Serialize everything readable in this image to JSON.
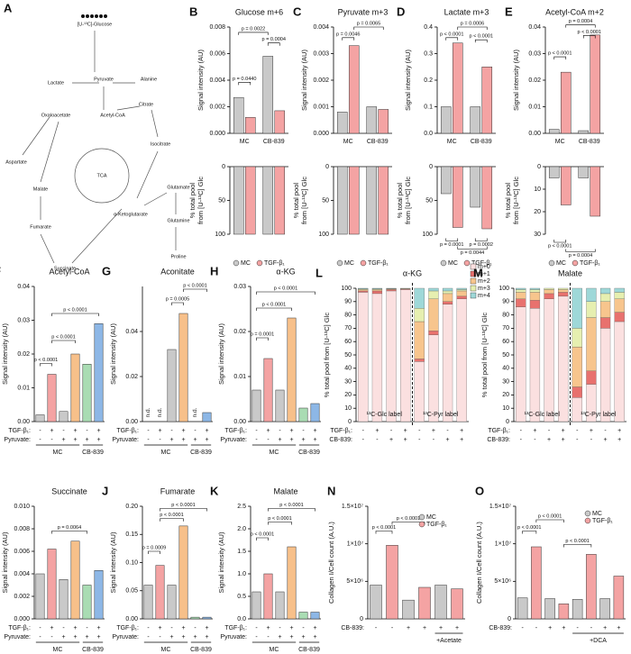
{
  "diagram": {
    "label": "A",
    "nodes": [
      "[U-¹³C]-Glucose",
      "Lactate",
      "Pyruvate",
      "Alanine",
      "Acetyl-CoA",
      "Citrate",
      "Oxaloacetate",
      "Aspartate",
      "Malate",
      "Isocitrate",
      "TCA",
      "Fumarate",
      "α-Ketoglutarate",
      "Glutamate",
      "Succinate",
      "Glutamine",
      "Proline"
    ]
  },
  "chart_data": [
    {
      "type": "bar",
      "label": "B",
      "title": "Glucose m+6",
      "ylabel": "Signal intensity (AU)",
      "ylim": [
        0,
        0.008
      ],
      "yticks": [
        {
          "value": 0,
          "label": "0.000"
        },
        0.002,
        0.004,
        0.006,
        0.008
      ],
      "categories": [
        "MC",
        "CB-839"
      ],
      "series": [
        {
          "name": "MC",
          "color": "#c9c9c9",
          "values": [
            0.0027,
            0.0058
          ]
        },
        {
          "name": "TGF-β₁",
          "color": "#f4a3a3",
          "values": [
            0.0012,
            0.0017
          ]
        }
      ],
      "annotations": [
        "p = 0.0022",
        "p = 0.0004",
        "p = 0.0440"
      ]
    },
    {
      "type": "bar",
      "inverted": true,
      "ylabel": [
        "% total pool",
        "from [U-¹³C] Glc"
      ],
      "ylim": [
        0,
        100
      ],
      "yticks": [
        0,
        50,
        100
      ],
      "series": [
        {
          "color": "#c9c9c9",
          "values": [
            100,
            100
          ]
        },
        {
          "color": "#f4a3a3",
          "values": [
            100,
            100
          ]
        }
      ]
    },
    {
      "type": "bar",
      "label": "C",
      "title": "Pyruvate m+3",
      "ylabel": "Signal intensity (AU)",
      "ylim": [
        0,
        0.004
      ],
      "yticks": [
        {
          "value": 0,
          "label": "0.000"
        },
        0.001,
        0.002,
        0.003,
        0.004
      ],
      "categories": [
        "MC",
        "CB-839"
      ],
      "series": [
        {
          "name": "MC",
          "color": "#c9c9c9",
          "values": [
            0.0008,
            0.001
          ]
        },
        {
          "name": "TGF-β₁",
          "color": "#f4a3a3",
          "values": [
            0.0033,
            0.0009
          ]
        }
      ],
      "annotations": [
        "p = 0.0046",
        "p = 0.0065"
      ]
    },
    {
      "type": "bar",
      "inverted": true,
      "ylabel": [
        "% total pool",
        "from [U-¹³C] Glc"
      ],
      "ylim": [
        0,
        100
      ],
      "yticks": [
        0,
        50,
        100
      ],
      "series": [
        {
          "color": "#c9c9c9",
          "values": [
            100,
            100
          ]
        },
        {
          "color": "#f4a3a3",
          "values": [
            100,
            100
          ]
        }
      ]
    },
    {
      "type": "bar",
      "label": "D",
      "title": "Lactate m+3",
      "ylabel": "Signal intensity (AU)",
      "ylim": [
        0,
        0.4
      ],
      "yticks": [
        {
          "value": 0,
          "label": "0.0"
        },
        0.1,
        0.2,
        0.3,
        0.4
      ],
      "categories": [
        "MC",
        "CB-839"
      ],
      "series": [
        {
          "name": "MC",
          "color": "#c9c9c9",
          "values": [
            0.1,
            0.1
          ]
        },
        {
          "name": "TGF-β₁",
          "color": "#f4a3a3",
          "values": [
            0.34,
            0.25
          ]
        }
      ],
      "annotations": [
        "p = 0.0006",
        "p < 0.0001",
        "p < 0.0001"
      ]
    },
    {
      "type": "bar",
      "inverted": true,
      "ylabel": [
        "% total pool",
        "from [U-¹³C] Glc"
      ],
      "ylim": [
        0,
        100
      ],
      "yticks": [
        0,
        50,
        100
      ],
      "series": [
        {
          "color": "#c9c9c9",
          "values": [
            40,
            60
          ]
        },
        {
          "color": "#f4a3a3",
          "values": [
            90,
            92
          ]
        }
      ],
      "annotations": [
        "p = 0.0001",
        "p = 0.0044",
        "p = 0.0002"
      ]
    },
    {
      "type": "bar",
      "label": "E",
      "title": "Acetyl-CoA m+2",
      "ylabel": "Signal intensity (AU)",
      "ylim": [
        0,
        0.04
      ],
      "yticks": [
        {
          "value": 0,
          "label": "0.00"
        },
        0.01,
        0.02,
        0.03,
        0.04
      ],
      "categories": [
        "MC",
        "CB-839"
      ],
      "series": [
        {
          "name": "MC",
          "color": "#c9c9c9",
          "values": [
            0.0015,
            0.001
          ]
        },
        {
          "name": "TGF-β₁",
          "color": "#f4a3a3",
          "values": [
            0.023,
            0.037
          ]
        }
      ],
      "annotations": [
        "p = 0.0004",
        "p < 0.0001",
        "p < 0.0001"
      ]
    },
    {
      "type": "bar",
      "inverted": true,
      "ylabel": [
        "% total pool",
        "from [U-¹³C] Glc"
      ],
      "ylim": [
        0,
        30
      ],
      "yticks": [
        0,
        10,
        20,
        30
      ],
      "series": [
        {
          "color": "#c9c9c9",
          "values": [
            5,
            5
          ]
        },
        {
          "color": "#f4a3a3",
          "values": [
            17,
            22
          ]
        }
      ],
      "annotations": [
        "p < 0.0001",
        "p = 0.0004"
      ]
    },
    {
      "type": "bar",
      "label": "F",
      "title": "Acetyl-CoA",
      "ylabel": "Signal intensity (AU)",
      "ylim": [
        0,
        0.04
      ],
      "yticks": [
        {
          "value": 0,
          "label": "0.00"
        },
        0.01,
        0.02,
        0.03,
        0.04
      ],
      "values": [
        0.002,
        0.014,
        0.003,
        0.02,
        0.017,
        0.029
      ],
      "colors": [
        "#c9c9c9",
        "#f4a3a3",
        "#c9c9c9",
        "#f7c08a",
        "#a9dcb3",
        "#8db7e6"
      ],
      "conditions": [
        {
          "name": "TGF-β₁:",
          "values": [
            "-",
            "+",
            "-",
            "+",
            "-",
            "+"
          ]
        },
        {
          "name": "Pyruvate:",
          "values": [
            "-",
            "-",
            "+",
            "+",
            "+",
            "+"
          ]
        }
      ],
      "groups": [
        "MC",
        "CB-839"
      ],
      "annotations": [
        "p < 0.0001",
        "p < 0.0001",
        "p < 0.0001"
      ]
    },
    {
      "type": "bar",
      "label": "G",
      "title": "Aconitate",
      "ylabel": "Signal intensity (AU)",
      "ylim": [
        0,
        0.06
      ],
      "yticks": [
        {
          "value": 0,
          "label": "0.00"
        },
        0.02,
        0.04
      ],
      "values": [
        null,
        null,
        0.032,
        0.048,
        null,
        0.004
      ],
      "value_labels": [
        "n.d.",
        "n.d.",
        null,
        null,
        "n.d.",
        null
      ],
      "colors": [
        "#c9c9c9",
        "#f4a3a3",
        "#c9c9c9",
        "#f7c08a",
        "#a9dcb3",
        "#8db7e6"
      ],
      "conditions": [
        {
          "name": "TGF-β₁:",
          "values": [
            "-",
            "+",
            "-",
            "+",
            "-",
            "+"
          ]
        },
        {
          "name": "Pyruvate:",
          "values": [
            "-",
            "-",
            "+",
            "+",
            "+",
            "+"
          ]
        }
      ],
      "groups": [
        "MC",
        "CB-839"
      ],
      "annotations": [
        "p = 0.0005",
        "p < 0.0001"
      ]
    },
    {
      "type": "bar",
      "label": "H",
      "title": "α-KG",
      "ylabel": "Signal intensity (AU)",
      "ylim": [
        0,
        0.03
      ],
      "yticks": [
        {
          "value": 0,
          "label": "0.00"
        },
        0.01,
        0.02,
        0.03
      ],
      "values": [
        0.007,
        0.014,
        0.007,
        0.023,
        0.003,
        0.004
      ],
      "colors": [
        "#c9c9c9",
        "#f4a3a3",
        "#c9c9c9",
        "#f7c08a",
        "#a9dcb3",
        "#8db7e6"
      ],
      "conditions": [
        {
          "name": "TGF-β₁:",
          "values": [
            "-",
            "+",
            "-",
            "+",
            "-",
            "+"
          ]
        },
        {
          "name": "Pyruvate:",
          "values": [
            "-",
            "-",
            "+",
            "+",
            "+",
            "+"
          ]
        }
      ],
      "groups": [
        "MC",
        "CB-839"
      ],
      "annotations": [
        "p < 0.0001",
        "p < 0.0001",
        "p = 0.0001"
      ]
    },
    {
      "type": "stacked",
      "label": "L",
      "title": "α-KG",
      "ylabel": "% total pool from [U-¹³C] Glc",
      "ylim": [
        0,
        100
      ],
      "yticks": [
        0,
        10,
        20,
        30,
        40,
        50,
        60,
        70,
        80,
        90,
        100
      ],
      "conditions": [
        {
          "name": "TGF-β₁:",
          "values": [
            "-",
            "+",
            "-",
            "+",
            "-",
            "+",
            "-",
            "+"
          ]
        },
        {
          "name": "CB-839:",
          "values": [
            "-",
            "-",
            "+",
            "+",
            "-",
            "-",
            "+",
            "+"
          ]
        }
      ],
      "groups": [
        "¹³C-Glc label",
        "¹³C-Pyr label"
      ],
      "series": [
        {
          "name": "m+0",
          "color": "#fbe0e0",
          "values": [
            97,
            96,
            98,
            99,
            45,
            65,
            88,
            92
          ]
        },
        {
          "name": "m+1",
          "color": "#e8716e",
          "values": [
            1,
            2,
            1,
            0.5,
            2,
            3,
            2,
            2
          ]
        },
        {
          "name": "m+2",
          "color": "#f7c58d",
          "values": [
            1,
            1,
            0.5,
            0.3,
            28,
            24,
            6,
            4
          ]
        },
        {
          "name": "m+3",
          "color": "#e6efb0",
          "values": [
            0.5,
            0.5,
            0.3,
            0.2,
            10,
            6,
            2,
            1
          ]
        },
        {
          "name": "m+4",
          "color": "#9ed8d8",
          "values": [
            0.5,
            0.5,
            0.2,
            0,
            15,
            2,
            2,
            1
          ]
        }
      ]
    },
    {
      "type": "stacked",
      "label": "M",
      "title": "Malate",
      "ylabel": "% total pool from [U-¹³C] Glc",
      "ylim": [
        0,
        100
      ],
      "yticks": [
        0,
        10,
        20,
        30,
        40,
        50,
        60,
        70,
        80,
        90,
        100
      ],
      "conditions": [
        {
          "name": "TGF-β₁:",
          "values": [
            "-",
            "+",
            "-",
            "+",
            "-",
            "+",
            "-",
            "+"
          ]
        },
        {
          "name": "CB-839:",
          "values": [
            "-",
            "-",
            "+",
            "+",
            "-",
            "-",
            "+",
            "+"
          ]
        }
      ],
      "groups": [
        "¹³C-Glc label",
        "¹³C-Pyr label"
      ],
      "series": [
        {
          "color": "#fbe0e0",
          "values": [
            86,
            85,
            92,
            94,
            18,
            28,
            70,
            75
          ]
        },
        {
          "color": "#e8716e",
          "values": [
            6,
            6,
            4,
            3,
            8,
            10,
            8,
            7
          ]
        },
        {
          "color": "#f7c58d",
          "values": [
            5,
            6,
            3,
            2,
            30,
            40,
            12,
            10
          ]
        },
        {
          "color": "#e6efb0",
          "values": [
            2,
            2,
            1,
            1,
            14,
            12,
            6,
            5
          ]
        },
        {
          "color": "#9ed8d8",
          "values": [
            1,
            1,
            0,
            0,
            30,
            10,
            4,
            3
          ]
        }
      ]
    },
    {
      "type": "bar",
      "label": "I",
      "title": "Succinate",
      "ylabel": "Signal intensity (AU)",
      "ylim": [
        0,
        0.01
      ],
      "yticks": [
        {
          "value": 0,
          "label": "0.000"
        },
        0.002,
        0.004,
        0.006,
        0.008,
        {
          "value": 0.01,
          "label": "0.010"
        }
      ],
      "values": [
        0.004,
        0.0062,
        0.0035,
        0.0069,
        0.003,
        0.0043
      ],
      "colors": [
        "#c9c9c9",
        "#f4a3a3",
        "#c9c9c9",
        "#f7c08a",
        "#a9dcb3",
        "#8db7e6"
      ],
      "conditions": [
        {
          "name": "TGF-β₁:",
          "values": [
            "-",
            "+",
            "-",
            "+",
            "-",
            "+"
          ]
        },
        {
          "name": "Pyruvate:",
          "values": [
            "-",
            "-",
            "+",
            "+",
            "+",
            "+"
          ]
        }
      ],
      "groups": [
        "MC",
        "CB-839"
      ],
      "annotations": [
        "p = 0.0064"
      ]
    },
    {
      "type": "bar",
      "label": "J",
      "title": "Fumarate",
      "ylabel": "Signal intensity (AU)",
      "ylim": [
        0,
        0.2
      ],
      "yticks": [
        {
          "value": 0,
          "label": "0.00"
        },
        0.05,
        {
          "value": 0.1,
          "label": "0.10"
        },
        0.15,
        {
          "value": 0.2,
          "label": "0.20"
        }
      ],
      "values": [
        0.06,
        0.095,
        0.06,
        0.165,
        0.003,
        0.003
      ],
      "colors": [
        "#c9c9c9",
        "#f4a3a3",
        "#c9c9c9",
        "#f7c08a",
        "#a9dcb3",
        "#8db7e6"
      ],
      "conditions": [
        {
          "name": "TGF-β₁:",
          "values": [
            "-",
            "+",
            "-",
            "+",
            "-",
            "+"
          ]
        },
        {
          "name": "Pyruvate:",
          "values": [
            "-",
            "-",
            "+",
            "+",
            "+",
            "+"
          ]
        }
      ],
      "groups": [
        "MC",
        "CB-839"
      ],
      "annotations": [
        "p < 0.0001",
        "p < 0.0001",
        "p = 0.0009"
      ]
    },
    {
      "type": "bar",
      "label": "K",
      "title": "Malate",
      "ylabel": "Signal intensity (AU)",
      "ylim": [
        0,
        2.5
      ],
      "yticks": [
        {
          "value": 0,
          "label": "0.0"
        },
        0.5,
        {
          "value": 1,
          "label": "1.0"
        },
        1.5,
        {
          "value": 2,
          "label": "2.0"
        },
        2.5
      ],
      "values": [
        0.6,
        1.0,
        0.6,
        1.6,
        0.15,
        0.15
      ],
      "colors": [
        "#c9c9c9",
        "#f4a3a3",
        "#c9c9c9",
        "#f7c08a",
        "#a9dcb3",
        "#8db7e6"
      ],
      "conditions": [
        {
          "name": "TGF-β₁:",
          "values": [
            "-",
            "+",
            "-",
            "+",
            "-",
            "+"
          ]
        },
        {
          "name": "Pyruvate:",
          "values": [
            "-",
            "-",
            "+",
            "+",
            "+",
            "+"
          ]
        }
      ],
      "groups": [
        "MC",
        "CB-839"
      ],
      "annotations": [
        "p < 0.0001",
        "p < 0.0001",
        "p < 0.0001"
      ]
    },
    {
      "type": "bar",
      "label": "N",
      "ylabel": "Collagen I/Cell count (A.U.)",
      "ylim": [
        0,
        15000000
      ],
      "yticks": [
        0,
        {
          "value": 5000000,
          "label": "5×10⁶"
        },
        {
          "value": 10000000,
          "label": "1×10⁷"
        },
        {
          "value": 15000000,
          "label": "1.5×10⁷"
        }
      ],
      "values": [
        4500000,
        9800000,
        2500000,
        4200000,
        4500000,
        4000000
      ],
      "colors": [
        "#c9c9c9",
        "#f4a3a3",
        "#c9c9c9",
        "#f4a3a3",
        "#c9c9c9",
        "#f4a3a3"
      ],
      "legend": [
        {
          "name": "MC",
          "color": "#c9c9c9"
        },
        {
          "name": "TGF-β₁",
          "color": "#f4a3a3"
        }
      ],
      "conditions": [
        {
          "name": "CB-839:",
          "values": [
            "-",
            "-",
            "+",
            "+",
            "+",
            "+"
          ]
        }
      ],
      "groups": [
        "+Acetate"
      ],
      "annotations": [
        "p < 0.0001",
        "p < 0.0001"
      ]
    },
    {
      "type": "bar",
      "label": "O",
      "ylabel": "Collagen I/Cell count (A.U.)",
      "ylim": [
        0,
        15000000
      ],
      "yticks": [
        0,
        {
          "value": 5000000,
          "label": "5×10⁶"
        },
        {
          "value": 10000000,
          "label": "1×10⁷"
        },
        {
          "value": 15000000,
          "label": "1.5×10⁷"
        }
      ],
      "values": [
        2800000,
        9600000,
        2700000,
        2000000,
        2600000,
        8600000,
        2700000,
        5700000
      ],
      "colors": [
        "#c9c9c9",
        "#f4a3a3",
        "#c9c9c9",
        "#f4a3a3",
        "#c9c9c9",
        "#f4a3a3",
        "#c9c9c9",
        "#f4a3a3"
      ],
      "legend": [
        {
          "name": "MC",
          "color": "#c9c9c9"
        },
        {
          "name": "TGF-β₁",
          "color": "#f4a3a3"
        }
      ],
      "conditions": [
        {
          "name": "CB-839:",
          "values": [
            "-",
            "-",
            "+",
            "+",
            "-",
            "-",
            "+",
            "+"
          ]
        }
      ],
      "groups": [
        "+DCA"
      ],
      "annotations": [
        "p < 0.0001",
        "p < 0.0001",
        "p < 0.0001"
      ]
    }
  ]
}
